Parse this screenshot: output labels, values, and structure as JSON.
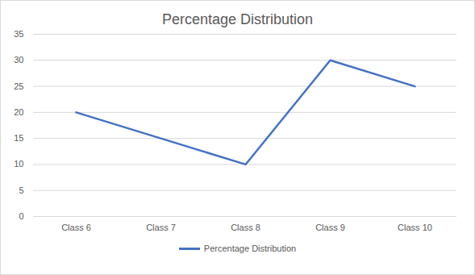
{
  "chart_data": {
    "type": "line",
    "title": "Percentage Distribution",
    "categories": [
      "Class 6",
      "Class 7",
      "Class 8",
      "Class 9",
      "Class 10"
    ],
    "series": [
      {
        "name": "Percentage Distribution",
        "color": "#4472c4",
        "values": [
          20,
          15,
          10,
          30,
          25
        ]
      }
    ],
    "ylim": [
      0,
      35
    ],
    "yticks": [
      0,
      5,
      10,
      15,
      20,
      25,
      30,
      35
    ],
    "grid": true,
    "legend": "bottom"
  }
}
